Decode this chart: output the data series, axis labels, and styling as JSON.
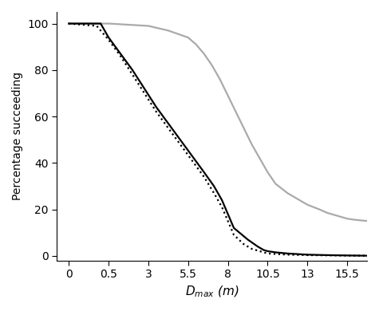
{
  "xlabel": "$D_{max}$ (m)",
  "ylabel": "Percentage succeeding",
  "xlim": [
    -0.3,
    7.5
  ],
  "ylim": [
    -2,
    105
  ],
  "xtick_positions": [
    0,
    1,
    2,
    3,
    4,
    5,
    6,
    7
  ],
  "xtick_labels": [
    "0",
    "0.5",
    "3",
    "5.5",
    "8",
    "10.5",
    "13",
    "15.5"
  ],
  "yticks": [
    0,
    20,
    40,
    60,
    80,
    100
  ],
  "black_solid": {
    "x": [
      0,
      0.8,
      1.0,
      1.3,
      1.6,
      1.9,
      2.2,
      2.5,
      2.8,
      3.1,
      3.4,
      3.65,
      3.85,
      4.0,
      4.15,
      4.5,
      4.75,
      4.9,
      5.0,
      5.2,
      5.5,
      6.0,
      6.5,
      7.0,
      7.5
    ],
    "y": [
      100,
      100,
      94,
      87,
      80,
      72,
      64,
      57,
      50,
      43,
      36,
      30,
      24,
      18,
      12,
      7,
      4,
      2.5,
      2,
      1.5,
      1,
      0.5,
      0.3,
      0.15,
      0.05
    ]
  },
  "black_dotted": {
    "x": [
      0,
      0.7,
      1.0,
      1.3,
      1.6,
      1.9,
      2.2,
      2.5,
      2.8,
      3.1,
      3.4,
      3.65,
      3.85,
      4.0,
      4.15,
      4.4,
      4.6,
      4.8,
      5.0,
      5.5,
      6.0,
      6.5,
      7.0,
      7.5
    ],
    "y": [
      100,
      99,
      93,
      86,
      78,
      70,
      62,
      55,
      48,
      41,
      34,
      27,
      21,
      15,
      9,
      5,
      3,
      2,
      1,
      0.5,
      0.3,
      0.2,
      0.1,
      0.05
    ]
  },
  "grey_solid": {
    "x": [
      0,
      1.0,
      2.0,
      2.5,
      3.0,
      3.2,
      3.4,
      3.6,
      3.8,
      4.0,
      4.2,
      4.4,
      4.6,
      4.8,
      5.0,
      5.2,
      5.5,
      5.8,
      6.0,
      6.3,
      6.5,
      6.8,
      7.0,
      7.2,
      7.5
    ],
    "y": [
      100,
      100,
      99,
      97,
      94,
      91,
      87,
      82,
      76,
      69,
      62,
      55,
      48,
      42,
      36,
      31,
      27,
      24,
      22,
      20,
      18.5,
      17,
      16,
      15.5,
      15
    ]
  },
  "black_color": "#000000",
  "grey_color": "#aaaaaa",
  "linewidth": 1.6
}
